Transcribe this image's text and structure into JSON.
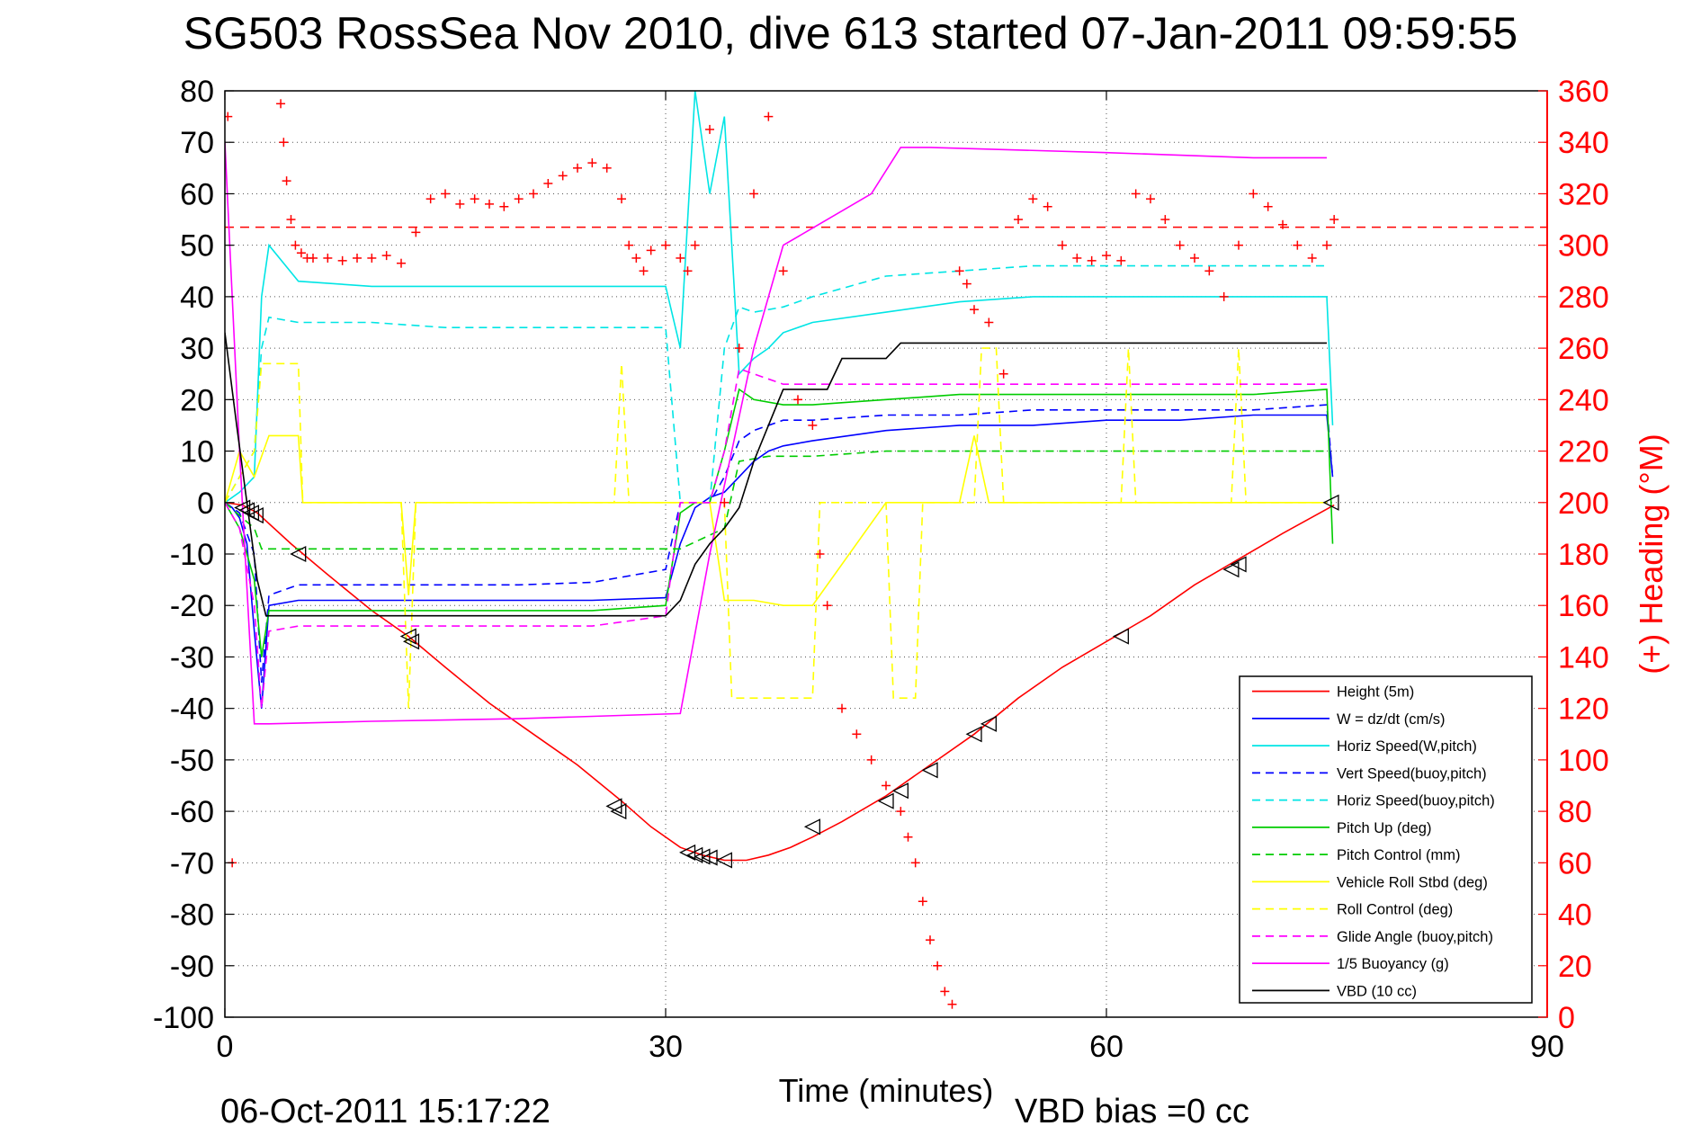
{
  "title": "SG503 RossSea Nov 2010, dive 613 started 07-Jan-2011 09:59:55",
  "footer": {
    "timestamp": "06-Oct-2011 15:17:22",
    "vbd_bias": "VBD bias =0 cc"
  },
  "chart_data": {
    "type": "line",
    "xlabel": "Time (minutes)",
    "ylabel": "",
    "y2label": "(+) Heading (°M)",
    "xlim": [
      0,
      90
    ],
    "ylim": [
      -100,
      80
    ],
    "y2lim": [
      0,
      360
    ],
    "xticks": [
      0,
      30,
      60,
      90
    ],
    "yticks": [
      80,
      70,
      60,
      50,
      40,
      30,
      20,
      10,
      0,
      -10,
      -20,
      -30,
      -40,
      -50,
      -60,
      -70,
      -80,
      -90,
      -100
    ],
    "y2ticks": [
      360,
      340,
      320,
      300,
      280,
      260,
      240,
      220,
      200,
      180,
      160,
      140,
      120,
      100,
      80,
      60,
      40,
      20,
      0
    ],
    "grid": "dotted",
    "legend_position": "bottom-right",
    "colors": {
      "right_axis": "#ff0000"
    },
    "series": [
      {
        "name": "Height (5m)",
        "color": "#ff0000",
        "dash": "solid",
        "x": [
          0,
          1.2,
          2.2,
          4.5,
          7,
          10,
          12.5,
          15,
          18,
          21,
          24,
          27,
          29,
          31,
          32.5,
          34,
          35.5,
          37,
          38.5,
          40,
          42,
          45,
          48,
          51,
          54,
          57,
          60,
          63,
          66,
          69,
          72,
          75.5
        ],
        "y": [
          0,
          -0.5,
          -2,
          -8,
          -14,
          -21,
          -26,
          -32,
          -39,
          -45,
          -51,
          -58,
          -63,
          -67,
          -68.5,
          -69.5,
          -69.5,
          -68.5,
          -67,
          -65,
          -62,
          -57,
          -51,
          -45,
          -38,
          -32,
          -27,
          -22,
          -16,
          -11,
          -6,
          -0.5
        ]
      },
      {
        "name": "W = dz/dt (cm/s)",
        "color": "#0000ff",
        "dash": "solid",
        "x": [
          0,
          0.5,
          1,
          1.5,
          2,
          2.5,
          3,
          5,
          10,
          15,
          20,
          25,
          30,
          31,
          32,
          33,
          34,
          35,
          36,
          37,
          38,
          40,
          45,
          50,
          55,
          60,
          65,
          70,
          75,
          75.4
        ],
        "y": [
          0,
          -1,
          -3,
          -8,
          -25,
          -40,
          -20,
          -19,
          -19,
          -19,
          -19,
          -19,
          -18.5,
          -8,
          -1,
          1,
          2,
          5,
          8,
          10,
          11,
          12,
          14,
          15,
          15,
          16,
          16,
          17,
          17,
          5
        ]
      },
      {
        "name": "Horiz Speed(W,pitch)",
        "color": "#00e5e5",
        "dash": "solid",
        "x": [
          0,
          1,
          2,
          2.5,
          3,
          5,
          10,
          15,
          20,
          25,
          30,
          31,
          32,
          33,
          34,
          35,
          36,
          37,
          38,
          40,
          45,
          50,
          55,
          60,
          65,
          70,
          75,
          75.4
        ],
        "y": [
          0,
          2,
          5,
          40,
          50,
          43,
          42,
          42,
          42,
          42,
          42,
          30,
          80,
          60,
          75,
          25,
          28,
          30,
          33,
          35,
          37,
          39,
          40,
          40,
          40,
          40,
          40,
          15
        ]
      },
      {
        "name": "Vert Speed(buoy,pitch)",
        "color": "#0000ff",
        "dash": "dashed",
        "x": [
          0,
          1,
          2,
          2.5,
          3,
          5,
          10,
          15,
          20,
          25,
          30,
          31,
          32,
          33,
          34,
          35,
          36,
          38,
          40,
          45,
          50,
          55,
          60,
          65,
          70,
          75,
          75.4
        ],
        "y": [
          0,
          -2,
          -10,
          -35,
          -18,
          -16,
          -16,
          -16,
          -16,
          -15.5,
          -13,
          0,
          0,
          0,
          5,
          12,
          14,
          16,
          16,
          17,
          17,
          18,
          18,
          18,
          18,
          19,
          5
        ]
      },
      {
        "name": "Horiz Speed(buoy,pitch)",
        "color": "#00e5e5",
        "dash": "dashed",
        "x": [
          0,
          1,
          2,
          2.5,
          3,
          5,
          10,
          15,
          20,
          25,
          30,
          31,
          32,
          33,
          34,
          35,
          36,
          38,
          40,
          45,
          50,
          55,
          60,
          65,
          70,
          75
        ],
        "y": [
          0,
          5,
          10,
          30,
          36,
          35,
          35,
          34,
          34,
          34,
          34,
          0,
          0,
          0,
          30,
          38,
          37,
          38,
          40,
          44,
          45,
          46,
          46,
          46,
          46,
          46
        ]
      },
      {
        "name": "Pitch Up (deg)",
        "color": "#00cc00",
        "dash": "solid",
        "x": [
          0,
          1,
          2,
          2.5,
          3,
          5,
          10,
          15,
          20,
          25,
          30,
          31,
          32,
          33,
          34,
          35,
          36,
          38,
          40,
          45,
          50,
          55,
          60,
          65,
          70,
          75,
          75.4
        ],
        "y": [
          0,
          -5,
          -15,
          -30,
          -21,
          -21,
          -21,
          -21,
          -21,
          -21,
          -20,
          -2,
          0,
          0,
          10,
          22,
          20,
          19,
          19,
          20,
          21,
          21,
          21,
          21,
          21,
          22,
          -8
        ]
      },
      {
        "name": "Pitch Control (mm)",
        "color": "#00cc00",
        "dash": "dashed",
        "x": [
          0,
          2,
          2.5,
          5,
          30,
          31,
          34,
          35,
          37,
          40,
          45,
          75
        ],
        "y": [
          0,
          -5,
          -9,
          -9,
          -9,
          -9,
          -5,
          8,
          9,
          9,
          10,
          10
        ]
      },
      {
        "name": "Vehicle Roll Stbd (deg)",
        "color": "#ffff00",
        "dash": "solid",
        "x": [
          0,
          1,
          2,
          3,
          5,
          5.3,
          12,
          12.5,
          13,
          25,
          30,
          31,
          33,
          34,
          36,
          38,
          40,
          45,
          50,
          51,
          52,
          60,
          70,
          75
        ],
        "y": [
          0,
          10,
          5,
          13,
          13,
          0,
          0,
          -18,
          0,
          0,
          0,
          0,
          0,
          -19,
          -19,
          -20,
          -20,
          0,
          0,
          13,
          0,
          0,
          0,
          0
        ]
      },
      {
        "name": "Roll Control (deg)",
        "color": "#ffff00",
        "dash": "dashed",
        "x": [
          0,
          2,
          2.5,
          5,
          5.3,
          12,
          12.5,
          13,
          26.5,
          27,
          27.5,
          30,
          34,
          34.5,
          40,
          40.5,
          45,
          45.5,
          47,
          47.5,
          51,
          51.5,
          52.5,
          53,
          61,
          61.5,
          62,
          68.5,
          69,
          69.5,
          75
        ],
        "y": [
          0,
          10,
          27,
          27,
          0,
          0,
          -40,
          0,
          0,
          27,
          0,
          0,
          0,
          -38,
          -38,
          0,
          0,
          -38,
          -38,
          0,
          0,
          30,
          30,
          0,
          0,
          30,
          0,
          0,
          30,
          0,
          0
        ]
      },
      {
        "name": "Glide Angle (buoy,pitch)",
        "color": "#ff00ff",
        "dash": "dashed",
        "x": [
          0,
          1,
          2,
          2.5,
          3,
          5,
          10,
          15,
          20,
          25,
          30,
          31,
          32,
          33,
          34,
          35,
          36,
          38,
          40,
          45,
          50,
          55,
          60,
          65,
          70,
          75
        ],
        "y": [
          0,
          -5,
          -20,
          -40,
          -25,
          -24,
          -24,
          -24,
          -24,
          -24,
          -22,
          0,
          0,
          0,
          10,
          26,
          25,
          23,
          23,
          23,
          23,
          23,
          23,
          23,
          23,
          23
        ]
      },
      {
        "name": "1/5 Buoyancy (g)",
        "color": "#ff00ff",
        "dash": "solid",
        "x": [
          0,
          1,
          2,
          3,
          10,
          20,
          31,
          33,
          36,
          38,
          44,
          46,
          48,
          60,
          70,
          75
        ],
        "y": [
          70,
          10,
          -43,
          -43,
          -42.5,
          -42,
          -41,
          -10,
          30,
          50,
          60,
          69,
          69,
          68,
          67,
          67
        ]
      },
      {
        "name": "VBD (10 cc)",
        "color": "#000000",
        "dash": "solid",
        "x": [
          0,
          0.8,
          1.5,
          2.2,
          2.8,
          5,
          10,
          20,
          30,
          31,
          32,
          33,
          34,
          35,
          36,
          37,
          38,
          41,
          42,
          45,
          46,
          47,
          75
        ],
        "y": [
          33,
          15,
          0,
          -15,
          -22,
          -22,
          -22,
          -22,
          -22,
          -19,
          -12,
          -8,
          -5,
          -1,
          8,
          15,
          22,
          22,
          28,
          28,
          31,
          31,
          31
        ]
      }
    ],
    "heading_markers": {
      "name": "Heading (+)",
      "color": "#ff0000",
      "reference_heading": 307,
      "x": [
        0.2,
        0.5,
        3.8,
        4,
        4.2,
        4.5,
        4.8,
        5.2,
        5.6,
        6,
        7,
        8,
        9,
        10,
        11,
        12,
        13,
        14,
        15,
        16,
        17,
        18,
        19,
        20,
        21,
        22,
        23,
        24,
        25,
        26,
        27,
        27.5,
        28,
        28.5,
        29,
        30,
        31,
        31.5,
        32,
        33,
        34,
        35,
        36,
        37,
        38,
        39,
        40,
        40.5,
        41,
        42,
        43,
        44,
        45,
        46,
        46.5,
        47,
        47.5,
        48,
        48.5,
        49,
        49.5,
        50,
        50.5,
        51,
        52,
        53,
        54,
        55,
        56,
        57,
        58,
        59,
        60,
        61,
        62,
        63,
        64,
        65,
        66,
        67,
        68,
        69,
        70,
        71,
        72,
        73,
        74,
        75,
        75.5
      ],
      "y": [
        350,
        60,
        355,
        340,
        325,
        310,
        300,
        297,
        295,
        295,
        295,
        294,
        295,
        295,
        296,
        293,
        305,
        318,
        320,
        316,
        318,
        316,
        315,
        318,
        320,
        324,
        327,
        330,
        332,
        330,
        318,
        300,
        295,
        290,
        298,
        300,
        295,
        290,
        300,
        345,
        200,
        260,
        320,
        350,
        290,
        240,
        230,
        180,
        160,
        120,
        110,
        100,
        90,
        80,
        70,
        60,
        45,
        30,
        20,
        10,
        5,
        290,
        285,
        275,
        270,
        250,
        310,
        318,
        315,
        300,
        295,
        294,
        296,
        294,
        320,
        318,
        310,
        300,
        295,
        290,
        280,
        300,
        320,
        315,
        308,
        300,
        295,
        300,
        310
      ]
    },
    "depth_markers": {
      "color": "#000000",
      "x": [
        1.2,
        1.5,
        1.8,
        2.1,
        5,
        12.5,
        12.7,
        26.5,
        26.8,
        31.5,
        32,
        32.5,
        33,
        34,
        40,
        45,
        46,
        48,
        51,
        52,
        61,
        68.5,
        69,
        75.3
      ],
      "y": [
        -1,
        -1.5,
        -2,
        -2.5,
        -10,
        -26,
        -27,
        -59,
        -60,
        -68,
        -68.5,
        -68.8,
        -69,
        -69.5,
        -63,
        -58,
        -56,
        -52,
        -45,
        -43,
        -26,
        -13,
        -12,
        0
      ]
    }
  }
}
